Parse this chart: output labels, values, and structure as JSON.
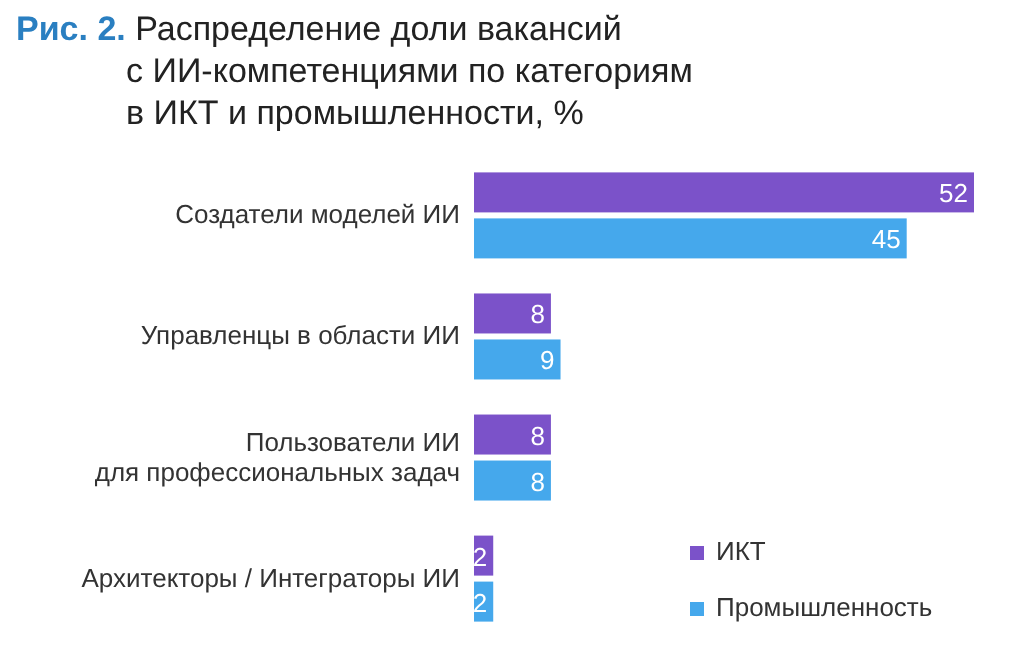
{
  "chart_data": {
    "type": "bar",
    "orientation": "horizontal",
    "title": "Рис. 2. Распределение доли вакансий с ИИ-компетенциями по категориям в ИКТ и промышленности, %",
    "categories": [
      "Создатели моделей ИИ",
      "Управленцы в области ИИ",
      "Пользователи ИИ для профессиональных задач",
      "Архитекторы / Интеграторы ИИ"
    ],
    "series": [
      {
        "name": "ИКТ",
        "color": "#7b52c9",
        "values": [
          52,
          8,
          8,
          2
        ]
      },
      {
        "name": "Промышленность",
        "color": "#45a8ec",
        "values": [
          45,
          9,
          8,
          2
        ]
      }
    ],
    "xlim": [
      0,
      52
    ],
    "data_labels": true,
    "legend": "bottom right",
    "tick_labels": "y"
  }
}
